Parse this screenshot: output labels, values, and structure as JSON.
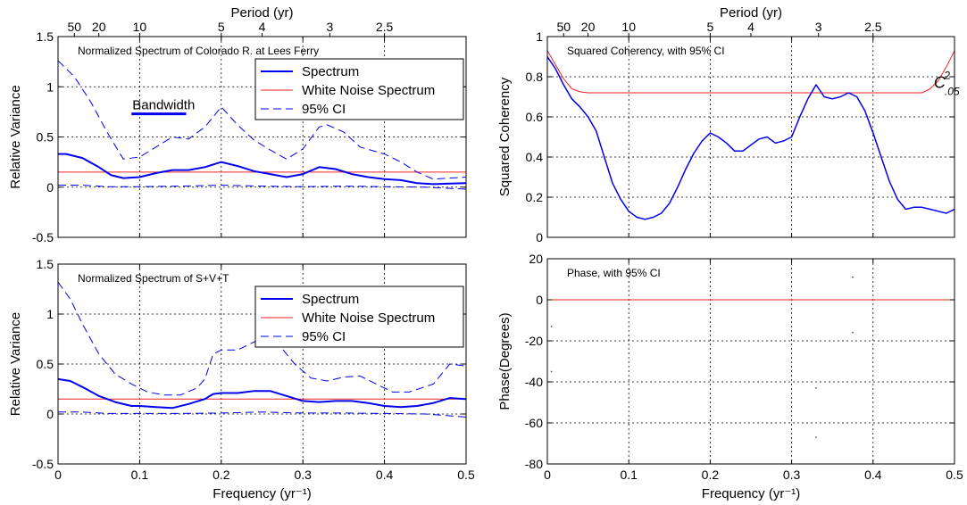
{
  "chart_data": [
    {
      "id": "p1",
      "type": "line",
      "title": "Normalized Spectrum of Colorado R. at Lees Ferry",
      "xlabel": "",
      "ylabel": "Relative Variance",
      "top_axis_label": "Period (yr)",
      "top_ticks": [
        {
          "label": "50",
          "x": 0.02
        },
        {
          "label": "20",
          "x": 0.05
        },
        {
          "label": "10",
          "x": 0.1
        },
        {
          "label": "5",
          "x": 0.2
        },
        {
          "label": "4",
          "x": 0.25
        },
        {
          "label": "3",
          "x": 0.333
        },
        {
          "label": "2.5",
          "x": 0.4
        }
      ],
      "xlim": [
        0,
        0.5
      ],
      "ylim": [
        -0.5,
        1.5
      ],
      "xticks": [
        0,
        0.1,
        0.2,
        0.3,
        0.4,
        0.5
      ],
      "xtick_labels": [],
      "yticks": [
        -0.5,
        0,
        0.5,
        1,
        1.5
      ],
      "ytick_labels": [
        "-0.5",
        "0",
        "0.5",
        "1",
        "1.5"
      ],
      "grid": true,
      "legend": {
        "position": "top-right",
        "entries": [
          {
            "name": "Spectrum",
            "style": "blue-solid-thick"
          },
          {
            "name": "White Noise Spectrum",
            "style": "red-solid"
          },
          {
            "name": "95% CI",
            "style": "blue-dashed"
          }
        ]
      },
      "annotation": {
        "text": "Bandwidth",
        "x0": 0.09,
        "x1": 0.157,
        "y": 0.73
      },
      "series": [
        {
          "name": "Spectrum",
          "color": "#0000ee",
          "style": "solid",
          "width": 2,
          "x": [
            0,
            0.01,
            0.03,
            0.05,
            0.065,
            0.08,
            0.1,
            0.12,
            0.14,
            0.16,
            0.18,
            0.2,
            0.22,
            0.24,
            0.26,
            0.28,
            0.3,
            0.32,
            0.34,
            0.36,
            0.38,
            0.4,
            0.42,
            0.44,
            0.46,
            0.48,
            0.5
          ],
          "y": [
            0.33,
            0.33,
            0.29,
            0.2,
            0.12,
            0.09,
            0.1,
            0.14,
            0.17,
            0.17,
            0.2,
            0.25,
            0.21,
            0.16,
            0.13,
            0.1,
            0.13,
            0.2,
            0.18,
            0.13,
            0.1,
            0.08,
            0.07,
            0.04,
            0.03,
            0.035,
            0.04
          ]
        },
        {
          "name": "White Noise Spectrum",
          "color": "#ee2222",
          "style": "solid",
          "width": 1,
          "x": [
            0,
            0.5
          ],
          "y": [
            0.15,
            0.15
          ]
        },
        {
          "name": "95% CI upper",
          "color": "#0000ee",
          "style": "dashed",
          "width": 1,
          "x": [
            0,
            0.02,
            0.04,
            0.06,
            0.08,
            0.1,
            0.12,
            0.14,
            0.16,
            0.18,
            0.2,
            0.22,
            0.24,
            0.26,
            0.28,
            0.3,
            0.32,
            0.33,
            0.35,
            0.37,
            0.4,
            0.42,
            0.44,
            0.46,
            0.48,
            0.5
          ],
          "y": [
            1.26,
            1.1,
            0.85,
            0.55,
            0.28,
            0.3,
            0.4,
            0.5,
            0.48,
            0.6,
            0.8,
            0.62,
            0.47,
            0.37,
            0.28,
            0.38,
            0.6,
            0.62,
            0.55,
            0.4,
            0.33,
            0.25,
            0.15,
            0.08,
            0.09,
            0.1
          ]
        },
        {
          "name": "95% CI lower",
          "color": "#0000ee",
          "style": "dashed",
          "width": 1,
          "x": [
            0,
            0.03,
            0.06,
            0.1,
            0.15,
            0.2,
            0.25,
            0.3,
            0.35,
            0.4,
            0.45,
            0.5
          ],
          "y": [
            0.02,
            0.02,
            0.005,
            0.005,
            0.01,
            0.02,
            0.01,
            0.005,
            0.01,
            0.005,
            0.0,
            -0.02
          ]
        }
      ]
    },
    {
      "id": "p2",
      "type": "line",
      "title": "Normalized Spectrum of S+V+T",
      "xlabel": "Frequency (yr⁻¹)",
      "ylabel": "Relative Variance",
      "xlim": [
        0,
        0.5
      ],
      "ylim": [
        -0.5,
        1.5
      ],
      "xticks": [
        0,
        0.1,
        0.2,
        0.3,
        0.4,
        0.5
      ],
      "xtick_labels": [
        "0",
        "0.1",
        "0.2",
        "0.3",
        "0.4",
        "0.5"
      ],
      "yticks": [
        -0.5,
        0,
        0.5,
        1,
        1.5
      ],
      "ytick_labels": [
        "-0.5",
        "0",
        "0.5",
        "1",
        "1.5"
      ],
      "grid": true,
      "legend": {
        "position": "top-right",
        "entries": [
          {
            "name": "Spectrum",
            "style": "blue-solid-thick"
          },
          {
            "name": "White Noise Spectrum",
            "style": "red-solid"
          },
          {
            "name": "95% CI",
            "style": "blue-dashed"
          }
        ]
      },
      "series": [
        {
          "name": "Spectrum",
          "color": "#0000ee",
          "style": "solid",
          "width": 2,
          "x": [
            0,
            0.015,
            0.03,
            0.05,
            0.07,
            0.09,
            0.1,
            0.12,
            0.14,
            0.16,
            0.18,
            0.19,
            0.2,
            0.22,
            0.24,
            0.26,
            0.28,
            0.3,
            0.32,
            0.34,
            0.36,
            0.38,
            0.4,
            0.42,
            0.44,
            0.46,
            0.48,
            0.5
          ],
          "y": [
            0.35,
            0.33,
            0.27,
            0.18,
            0.12,
            0.08,
            0.08,
            0.07,
            0.06,
            0.1,
            0.15,
            0.2,
            0.21,
            0.21,
            0.23,
            0.23,
            0.18,
            0.13,
            0.12,
            0.13,
            0.13,
            0.11,
            0.08,
            0.07,
            0.08,
            0.11,
            0.16,
            0.15
          ]
        },
        {
          "name": "White Noise Spectrum",
          "color": "#ee2222",
          "style": "solid",
          "width": 1,
          "x": [
            0,
            0.5
          ],
          "y": [
            0.15,
            0.15
          ]
        },
        {
          "name": "95% CI upper",
          "color": "#0000ee",
          "style": "dashed",
          "width": 1,
          "x": [
            0,
            0.015,
            0.03,
            0.05,
            0.07,
            0.09,
            0.11,
            0.13,
            0.15,
            0.17,
            0.18,
            0.19,
            0.2,
            0.22,
            0.25,
            0.27,
            0.29,
            0.31,
            0.33,
            0.35,
            0.37,
            0.39,
            0.41,
            0.43,
            0.46,
            0.48,
            0.5
          ],
          "y": [
            1.32,
            1.15,
            0.9,
            0.6,
            0.4,
            0.3,
            0.22,
            0.19,
            0.19,
            0.26,
            0.35,
            0.6,
            0.64,
            0.64,
            0.76,
            0.7,
            0.5,
            0.36,
            0.33,
            0.37,
            0.38,
            0.3,
            0.22,
            0.22,
            0.3,
            0.5,
            0.48
          ]
        },
        {
          "name": "95% CI lower",
          "color": "#0000ee",
          "style": "dashed",
          "width": 1,
          "x": [
            0,
            0.03,
            0.06,
            0.1,
            0.15,
            0.2,
            0.25,
            0.3,
            0.35,
            0.4,
            0.45,
            0.5
          ],
          "y": [
            0.02,
            0.02,
            0.005,
            0.005,
            0.005,
            0.01,
            0.02,
            0.01,
            0.01,
            0.005,
            0.0,
            -0.03
          ]
        }
      ]
    },
    {
      "id": "p3",
      "type": "line",
      "title": "Squared Coherency, with 95% CI",
      "xlabel": "",
      "ylabel": "Squared Coherency",
      "top_axis_label": "Period (yr)",
      "top_ticks": [
        {
          "label": "50",
          "x": 0.02
        },
        {
          "label": "20",
          "x": 0.05
        },
        {
          "label": "10",
          "x": 0.1
        },
        {
          "label": "5",
          "x": 0.2
        },
        {
          "label": "4",
          "x": 0.25
        },
        {
          "label": "3",
          "x": 0.333
        },
        {
          "label": "2.5",
          "x": 0.4
        }
      ],
      "xlim": [
        0,
        0.5
      ],
      "ylim": [
        0,
        1
      ],
      "xticks": [
        0,
        0.1,
        0.2,
        0.3,
        0.4,
        0.5
      ],
      "xtick_labels": [],
      "yticks": [
        0,
        0.2,
        0.4,
        0.6,
        0.8,
        1
      ],
      "ytick_labels": [
        "0",
        "0.2",
        "0.4",
        "0.6",
        "0.8",
        "1"
      ],
      "grid": true,
      "annotation": {
        "text": "C",
        "superscript": "2",
        "subscript": ".05",
        "x": 0.49,
        "y": 0.78
      },
      "series": [
        {
          "name": "Squared Coherency",
          "color": "#0000ee",
          "style": "solid",
          "width": 1.5,
          "x": [
            0,
            0.01,
            0.02,
            0.03,
            0.04,
            0.05,
            0.06,
            0.07,
            0.08,
            0.09,
            0.1,
            0.11,
            0.12,
            0.13,
            0.14,
            0.15,
            0.16,
            0.17,
            0.18,
            0.19,
            0.2,
            0.21,
            0.22,
            0.23,
            0.24,
            0.25,
            0.26,
            0.27,
            0.28,
            0.29,
            0.3,
            0.31,
            0.32,
            0.33,
            0.34,
            0.35,
            0.36,
            0.37,
            0.38,
            0.39,
            0.4,
            0.41,
            0.42,
            0.43,
            0.44,
            0.45,
            0.46,
            0.47,
            0.48,
            0.49,
            0.5
          ],
          "y": [
            0.9,
            0.84,
            0.76,
            0.69,
            0.65,
            0.6,
            0.53,
            0.4,
            0.27,
            0.19,
            0.13,
            0.1,
            0.09,
            0.1,
            0.12,
            0.17,
            0.25,
            0.34,
            0.42,
            0.48,
            0.52,
            0.5,
            0.47,
            0.43,
            0.43,
            0.46,
            0.49,
            0.5,
            0.47,
            0.48,
            0.5,
            0.6,
            0.69,
            0.76,
            0.7,
            0.69,
            0.7,
            0.72,
            0.7,
            0.63,
            0.52,
            0.4,
            0.28,
            0.19,
            0.14,
            0.15,
            0.15,
            0.14,
            0.13,
            0.12,
            0.14
          ]
        },
        {
          "name": "95% CI",
          "color": "#ee2222",
          "style": "solid",
          "width": 1,
          "x": [
            0,
            0.01,
            0.02,
            0.03,
            0.04,
            0.05,
            0.1,
            0.3,
            0.45,
            0.46,
            0.47,
            0.48,
            0.49,
            0.5
          ],
          "y": [
            0.93,
            0.86,
            0.79,
            0.74,
            0.725,
            0.72,
            0.72,
            0.72,
            0.72,
            0.72,
            0.74,
            0.78,
            0.85,
            0.93
          ]
        }
      ]
    },
    {
      "id": "p4",
      "type": "line",
      "title": "Phase, with 95% CI",
      "xlabel": "Frequency (yr⁻¹)",
      "ylabel": "Phase(Degrees)",
      "xlim": [
        0,
        0.5
      ],
      "ylim": [
        -80,
        20
      ],
      "xticks": [
        0,
        0.1,
        0.2,
        0.3,
        0.4,
        0.5
      ],
      "xtick_labels": [
        "0",
        "0.1",
        "0.2",
        "0.3",
        "0.4",
        "0.5"
      ],
      "yticks": [
        -80,
        -60,
        -40,
        -20,
        0,
        20
      ],
      "ytick_labels": [
        "-80",
        "-60",
        "-40",
        "-20",
        "0",
        "20"
      ],
      "grid": true,
      "series": [
        {
          "name": "Phase",
          "color": "#ee2222",
          "style": "solid",
          "width": 1,
          "x": [
            0,
            0.5
          ],
          "y": [
            0,
            0
          ]
        }
      ],
      "points": [
        {
          "x": 0.005,
          "y": -13
        },
        {
          "x": 0.005,
          "y": -35
        },
        {
          "x": 0.33,
          "y": -43
        },
        {
          "x": 0.33,
          "y": -67
        },
        {
          "x": 0.375,
          "y": 11
        },
        {
          "x": 0.375,
          "y": -16
        }
      ]
    }
  ]
}
